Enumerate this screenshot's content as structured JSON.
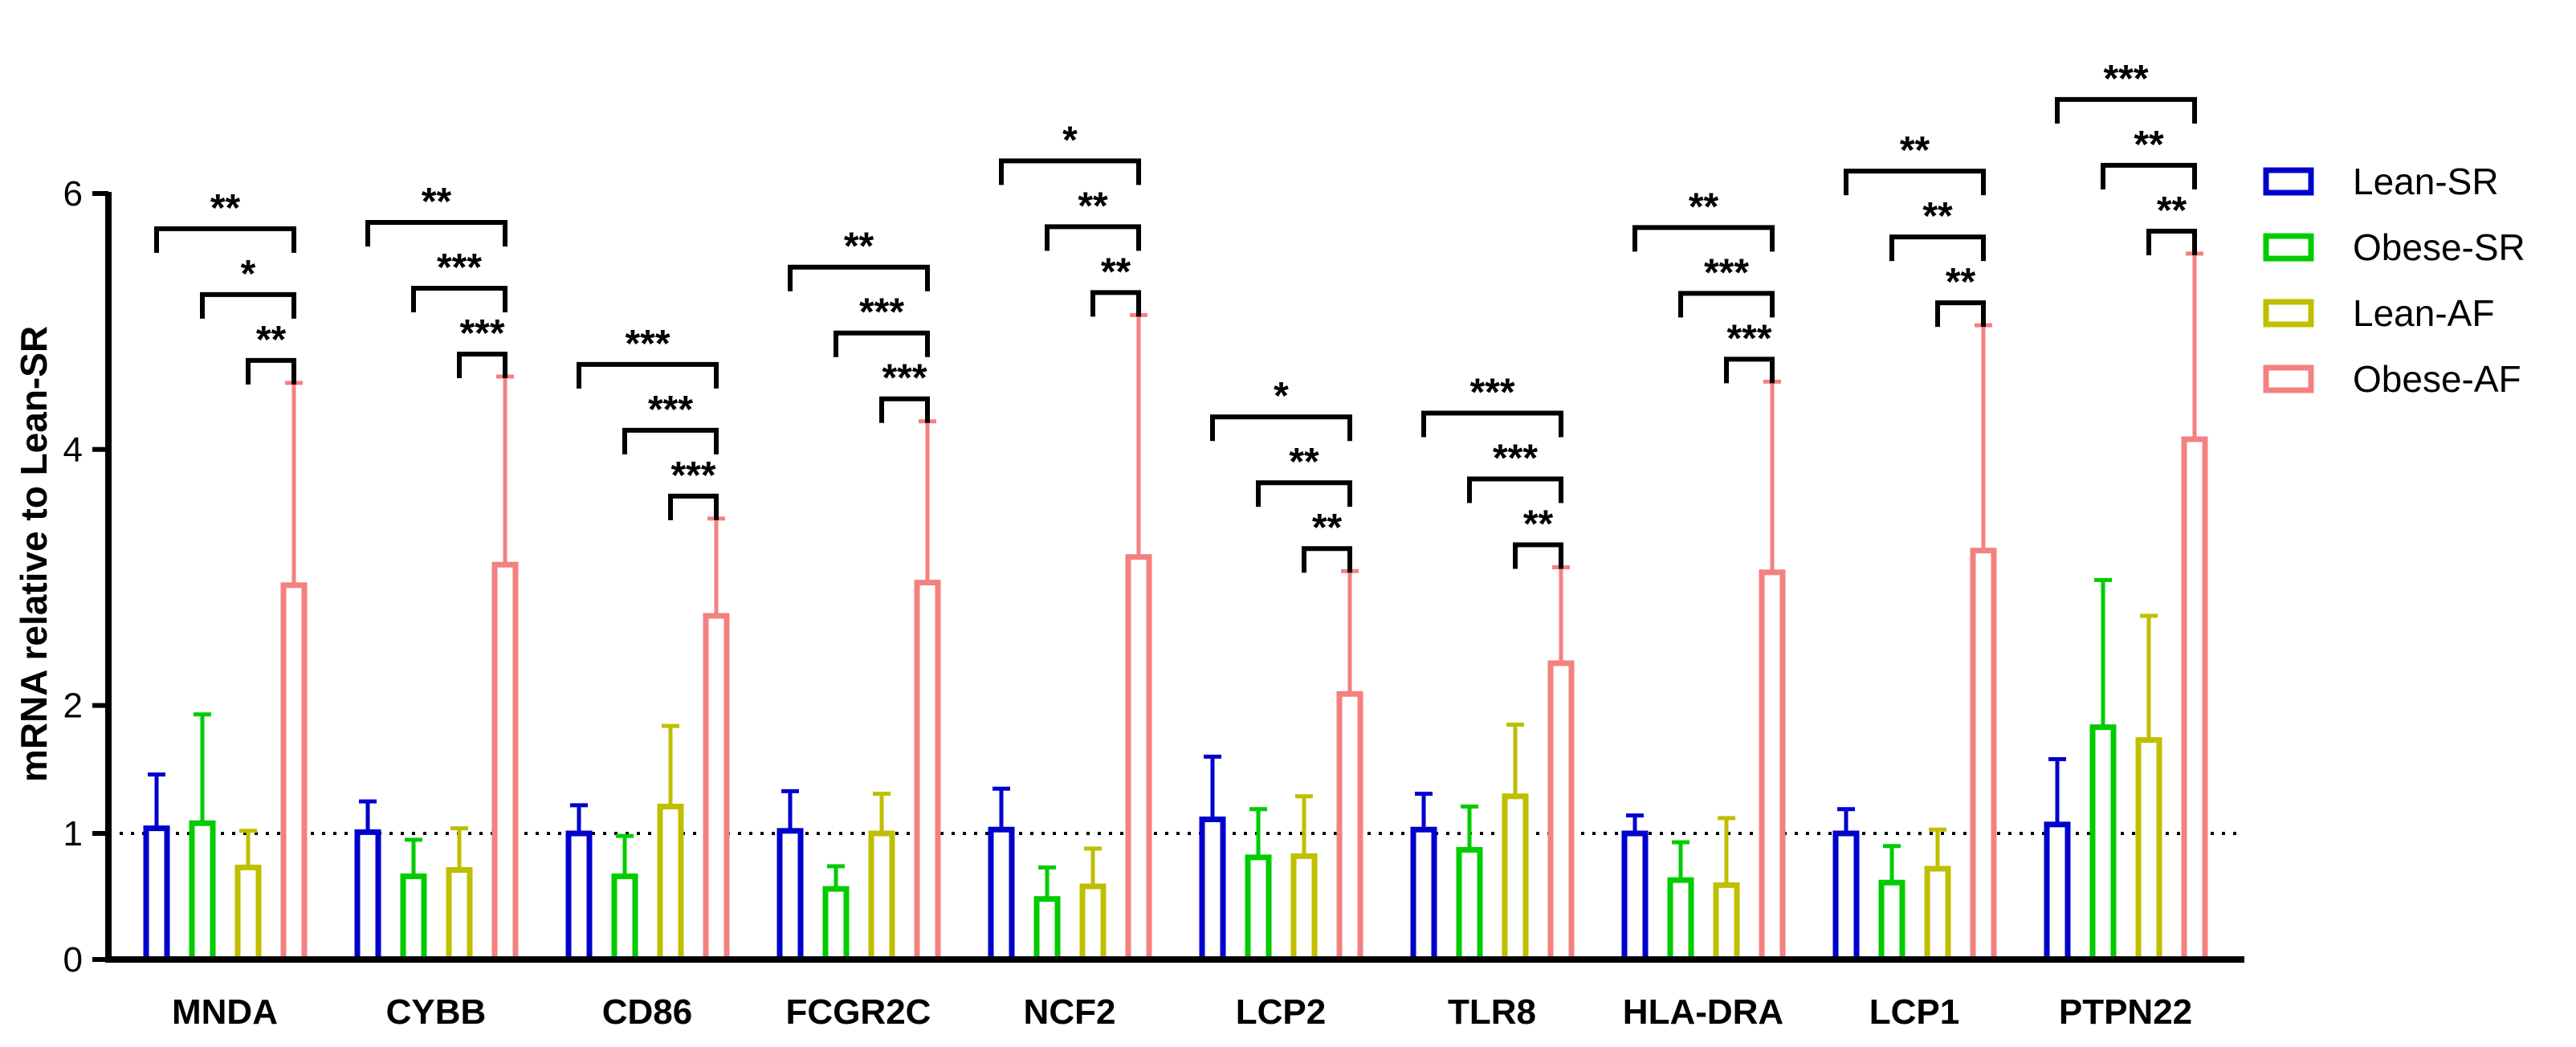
{
  "chart_data": {
    "type": "bar",
    "title": "",
    "xlabel": "",
    "ylabel": "mRNA relative to Lean-SR",
    "y_ticks": [
      "0",
      "1",
      "2",
      "4",
      "6"
    ],
    "y_scale_note": "piecewise axis: 0-1 and 1-6 segments",
    "reference_line": 1,
    "categories": [
      "MNDA",
      "CYBB",
      "CD86",
      "FCGR2C",
      "NCF2",
      "LCP2",
      "TLR8",
      "HLA-DRA",
      "LCP1",
      "PTPN22"
    ],
    "series": [
      {
        "name": "Lean-SR",
        "color": "#0000cc",
        "values": [
          1.04,
          1.01,
          1.0,
          1.02,
          1.03,
          1.11,
          1.03,
          1.0,
          1.0,
          1.07
        ],
        "errors": [
          0.42,
          0.24,
          0.22,
          0.31,
          0.32,
          0.49,
          0.28,
          0.14,
          0.19,
          0.51
        ]
      },
      {
        "name": "Obese-SR",
        "color": "#00cc00",
        "values": [
          1.08,
          0.66,
          0.66,
          0.56,
          0.48,
          0.81,
          0.87,
          0.63,
          0.61,
          1.83
        ],
        "errors": [
          0.85,
          0.29,
          0.32,
          0.18,
          0.25,
          0.38,
          0.34,
          0.3,
          0.29,
          1.15
        ]
      },
      {
        "name": "Lean-AF",
        "color": "#bfbf00",
        "values": [
          0.73,
          0.71,
          1.21,
          1.0,
          0.58,
          0.82,
          1.29,
          0.59,
          0.72,
          1.73
        ],
        "errors": [
          0.29,
          0.33,
          0.63,
          0.31,
          0.3,
          0.47,
          0.56,
          0.53,
          0.31,
          0.97
        ]
      },
      {
        "name": "Obese-AF",
        "color": "#f48080",
        "values": [
          2.94,
          3.1,
          2.7,
          2.96,
          3.16,
          2.09,
          2.33,
          3.04,
          3.21,
          4.08
        ],
        "errors": [
          1.58,
          1.47,
          0.76,
          1.26,
          1.89,
          0.96,
          0.75,
          1.49,
          1.76,
          1.45
        ]
      }
    ],
    "significance": [
      {
        "category": "MNDA",
        "brackets": [
          {
            "from": 0,
            "label": "**"
          },
          {
            "from": 1,
            "label": "*"
          },
          {
            "from": 2,
            "label": "**"
          }
        ]
      },
      {
        "category": "CYBB",
        "brackets": [
          {
            "from": 0,
            "label": "**"
          },
          {
            "from": 1,
            "label": "***"
          },
          {
            "from": 2,
            "label": "***"
          }
        ]
      },
      {
        "category": "CD86",
        "brackets": [
          {
            "from": 0,
            "label": "***"
          },
          {
            "from": 1,
            "label": "***"
          },
          {
            "from": 2,
            "label": "***"
          }
        ]
      },
      {
        "category": "FCGR2C",
        "brackets": [
          {
            "from": 0,
            "label": "**"
          },
          {
            "from": 1,
            "label": "***"
          },
          {
            "from": 2,
            "label": "***"
          }
        ]
      },
      {
        "category": "NCF2",
        "brackets": [
          {
            "from": 0,
            "label": "*"
          },
          {
            "from": 1,
            "label": "**"
          },
          {
            "from": 2,
            "label": "**"
          }
        ]
      },
      {
        "category": "LCP2",
        "brackets": [
          {
            "from": 0,
            "label": "*"
          },
          {
            "from": 1,
            "label": "**"
          },
          {
            "from": 2,
            "label": "**"
          }
        ]
      },
      {
        "category": "TLR8",
        "brackets": [
          {
            "from": 0,
            "label": "***"
          },
          {
            "from": 1,
            "label": "***"
          },
          {
            "from": 2,
            "label": "**"
          }
        ]
      },
      {
        "category": "HLA-DRA",
        "brackets": [
          {
            "from": 0,
            "label": "**"
          },
          {
            "from": 1,
            "label": "***"
          },
          {
            "from": 2,
            "label": "***"
          }
        ]
      },
      {
        "category": "LCP1",
        "brackets": [
          {
            "from": 0,
            "label": "**"
          },
          {
            "from": 1,
            "label": "**"
          },
          {
            "from": 2,
            "label": "**"
          }
        ]
      },
      {
        "category": "PTPN22",
        "brackets": [
          {
            "from": 0,
            "label": "***"
          },
          {
            "from": 1,
            "label": "**"
          },
          {
            "from": 2,
            "label": "**"
          }
        ]
      }
    ],
    "legend_position": "right"
  }
}
